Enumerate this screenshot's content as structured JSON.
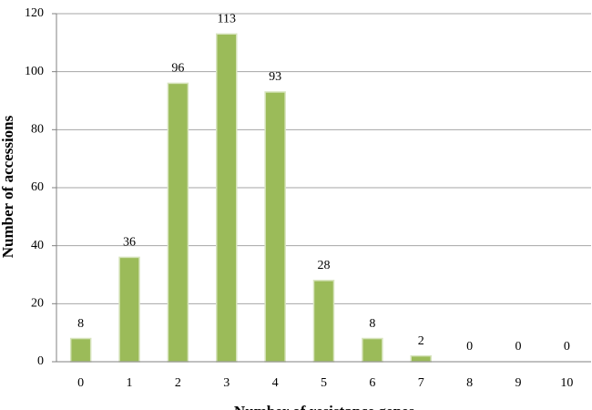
{
  "chart_data": {
    "type": "bar",
    "x_label": "Number of resistance genes",
    "y_label": "Number of accessions",
    "categories": [
      "0",
      "1",
      "2",
      "3",
      "4",
      "5",
      "6",
      "7",
      "8",
      "9",
      "10"
    ],
    "values": [
      8,
      36,
      96,
      113,
      93,
      28,
      8,
      2,
      0,
      0,
      0
    ],
    "color": "#9bbb59",
    "ylim": [
      0,
      120
    ],
    "yticks": [
      0,
      20,
      40,
      60,
      80,
      100,
      120
    ],
    "grid": true
  }
}
